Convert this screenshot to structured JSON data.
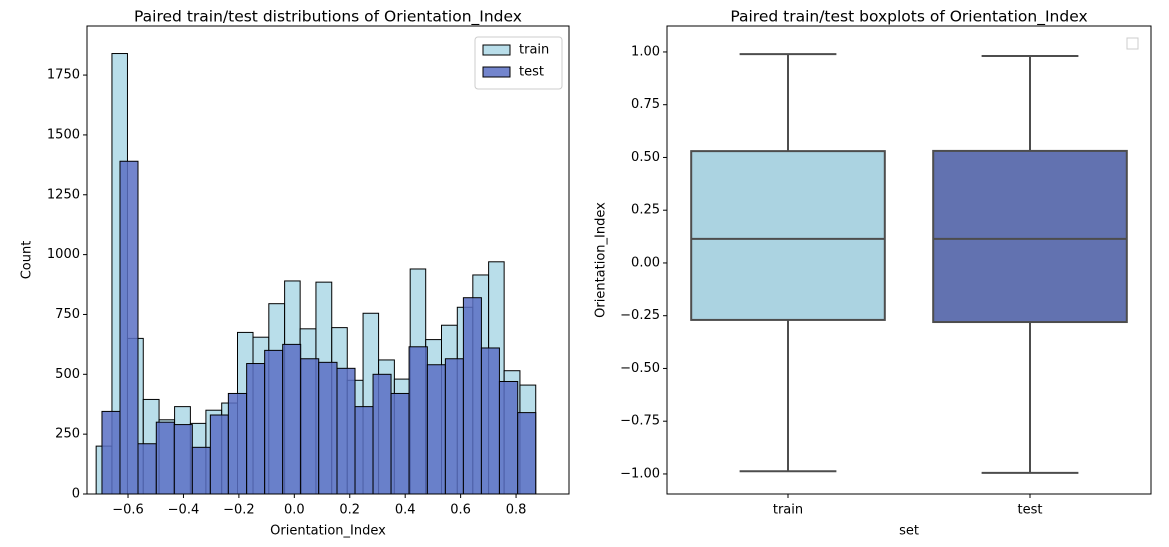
{
  "chart_data": [
    {
      "type": "histogram",
      "title": "Paired train/test distributions of Orientation_Index",
      "xlabel": "Orientation_Index",
      "ylabel": "Count",
      "xlim": [
        -0.748,
        0.991
      ],
      "ylim": [
        0,
        1955
      ],
      "xticks": [
        {
          "value": -0.6,
          "label": "−0.6"
        },
        {
          "value": -0.4,
          "label": "−0.4"
        },
        {
          "value": -0.2,
          "label": "−0.2"
        },
        {
          "value": 0,
          "label": "0.0"
        },
        0.2,
        0.4,
        0.6,
        0.8
      ],
      "yticks": [
        0,
        250,
        500,
        750,
        1000,
        1250,
        1500,
        1750
      ],
      "legend": "upper right",
      "series": [
        {
          "name": "train",
          "color": "#add8e6",
          "bins": [
            -0.715,
            -0.658,
            -0.602,
            -0.545,
            -0.488,
            -0.432,
            -0.375,
            -0.319,
            -0.262,
            -0.205,
            -0.149,
            -0.092,
            -0.035,
            0.021,
            0.078,
            0.135,
            0.191,
            0.248,
            0.304,
            0.361,
            0.418,
            0.474,
            0.531,
            0.588,
            0.644,
            0.701,
            0.757,
            0.814,
            0.871
          ],
          "values": [
            200,
            1840,
            650,
            395,
            310,
            365,
            295,
            350,
            380,
            675,
            655,
            795,
            890,
            690,
            885,
            695,
            475,
            755,
            560,
            480,
            940,
            645,
            705,
            780,
            915,
            970,
            515,
            455
          ]
        },
        {
          "name": "test",
          "color": "#5a70c4",
          "bins": [
            -0.694,
            -0.629,
            -0.564,
            -0.498,
            -0.433,
            -0.368,
            -0.303,
            -0.238,
            -0.172,
            -0.107,
            -0.042,
            0.023,
            0.088,
            0.154,
            0.219,
            0.284,
            0.349,
            0.414,
            0.48,
            0.545,
            0.61,
            0.675,
            0.74,
            0.806,
            0.871
          ],
          "values": [
            345,
            1390,
            210,
            300,
            290,
            195,
            330,
            420,
            545,
            600,
            625,
            565,
            550,
            525,
            365,
            500,
            420,
            615,
            540,
            565,
            820,
            610,
            470,
            340
          ]
        }
      ]
    },
    {
      "type": "box",
      "title": "Paired train/test boxplots of Orientation_Index",
      "xlabel": "set",
      "ylabel": "Orientation_Index",
      "categories": [
        "train",
        "test"
      ],
      "ylim": [
        -1.095,
        1.123
      ],
      "yticks": [
        {
          "value": -1,
          "label": "−1.00"
        },
        {
          "value": -0.75,
          "label": "−0.75"
        },
        {
          "value": -0.5,
          "label": "−0.50"
        },
        {
          "value": -0.25,
          "label": "−0.25"
        },
        {
          "value": 0,
          "label": "0.00"
        },
        {
          "value": 0.25,
          "label": "0.25"
        },
        {
          "value": 0.5,
          "label": "0.50"
        },
        {
          "value": 0.75,
          "label": "0.75"
        },
        {
          "value": 1,
          "label": "1.00"
        }
      ],
      "boxes": [
        {
          "color": "#abd3e1",
          "whislo": -0.987,
          "q1": -0.27,
          "med": 0.114,
          "q3": 0.53,
          "whishi": 0.99
        },
        {
          "color": "#6272b0",
          "whislo": -0.995,
          "q1": -0.28,
          "med": 0.114,
          "q3": 0.531,
          "whishi": 0.981
        }
      ]
    }
  ]
}
